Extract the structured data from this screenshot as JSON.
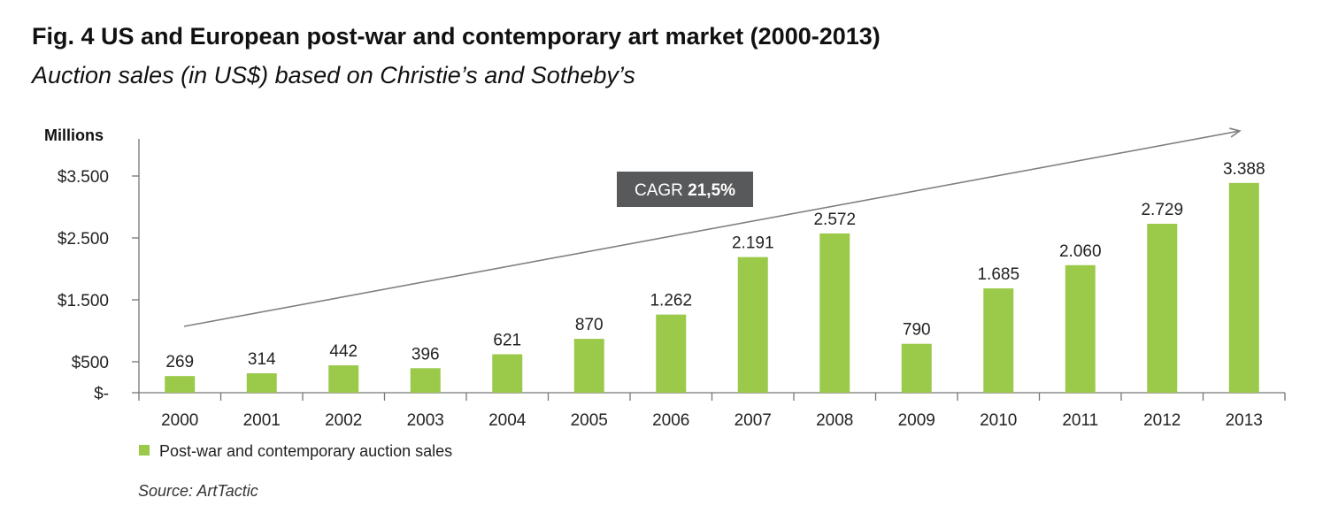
{
  "figure": {
    "title": "Fig. 4 US and European post-war and contemporary art market (2000-2013)",
    "subtitle": "Auction sales (in US$) based on Christie’s and Sotheby’s",
    "source": "Source: ArtTactic"
  },
  "chart_data": {
    "type": "bar",
    "ylabel": "Millions",
    "categories": [
      "2000",
      "2001",
      "2002",
      "2003",
      "2004",
      "2005",
      "2006",
      "2007",
      "2008",
      "2009",
      "2010",
      "2011",
      "2012",
      "2013"
    ],
    "series": [
      {
        "name": "Post-war and contemporary auction sales",
        "color": "#9bc94a",
        "values": [
          269,
          314,
          442,
          396,
          621,
          870,
          1262,
          2191,
          2572,
          790,
          1685,
          2060,
          2729,
          3388
        ],
        "labels": [
          "269",
          "314",
          "442",
          "396",
          "621",
          "870",
          "1.262",
          "2.191",
          "2.572",
          "790",
          "1.685",
          "2.060",
          "2.729",
          "3.388"
        ]
      }
    ],
    "yticks": [
      {
        "value": 0,
        "label": "$-"
      },
      {
        "value": 500,
        "label": "$500"
      },
      {
        "value": 1500,
        "label": "$1.500"
      },
      {
        "value": 2500,
        "label": "$2.500"
      },
      {
        "value": 3500,
        "label": "$3.500"
      }
    ],
    "ylim": [
      0,
      4200
    ],
    "annotation": {
      "prefix": "CAGR ",
      "value": "21,5%"
    },
    "trend_arrow": true,
    "grid": false,
    "legend_position": "bottom-left"
  }
}
